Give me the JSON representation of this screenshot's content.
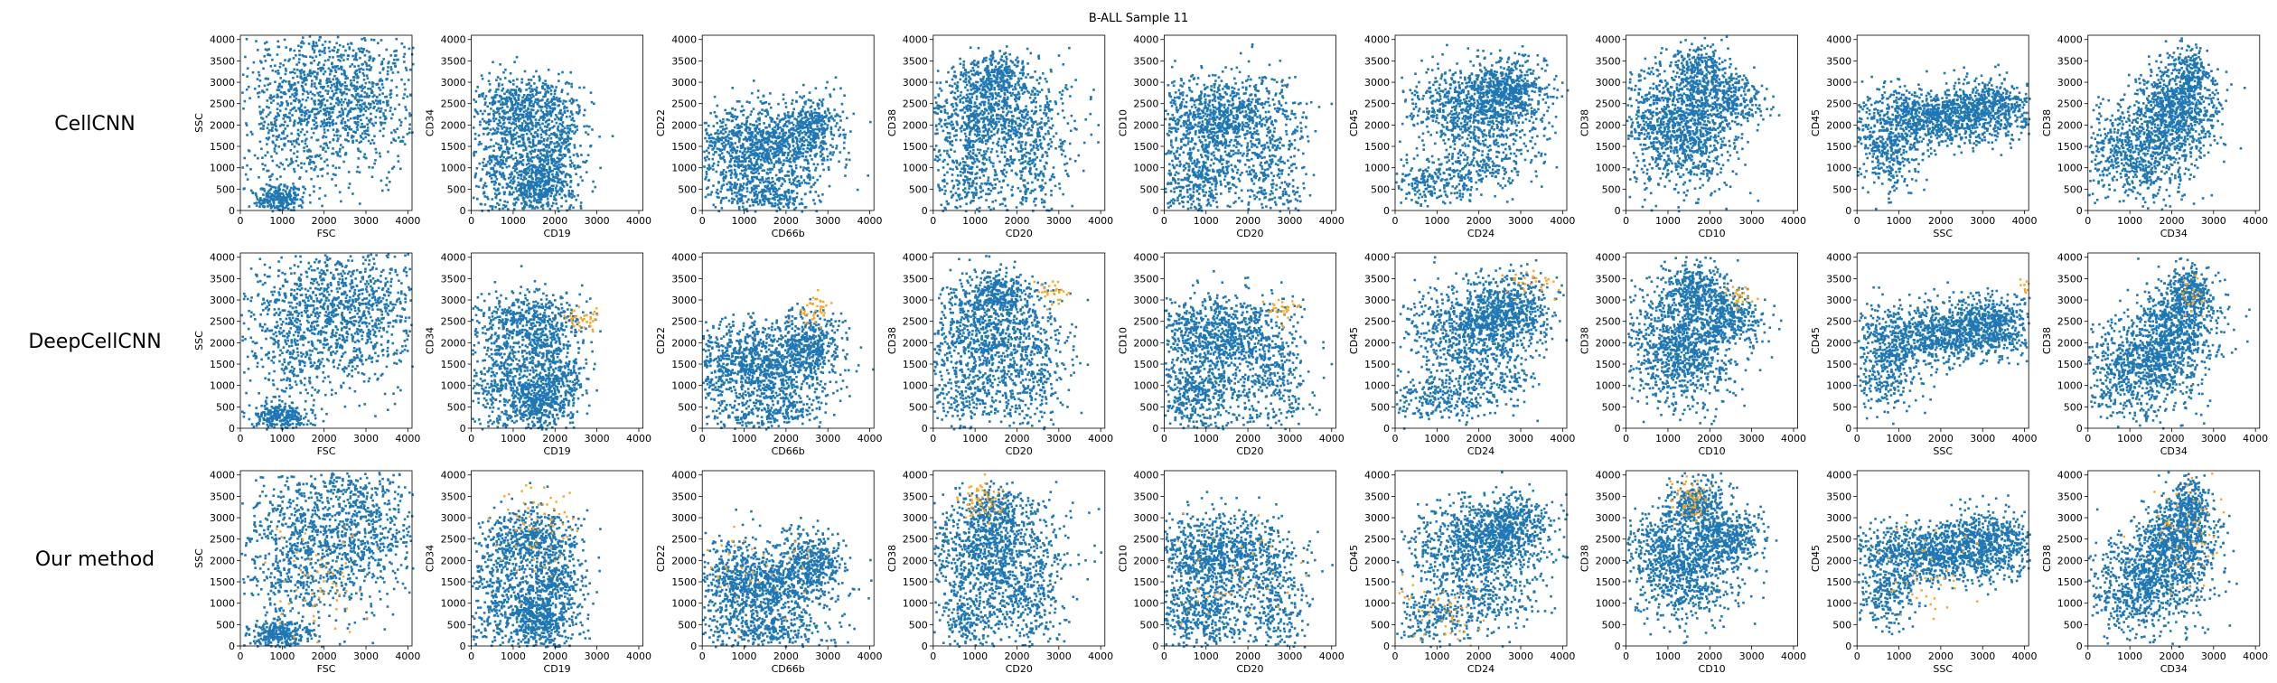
{
  "figure_title": "B-ALL Sample 11",
  "colors": {
    "main": "#1f77b4",
    "highlight": "#f5a623"
  },
  "chart_data": {
    "type": "scatter",
    "title": "B-ALL Sample 11",
    "rows": [
      "CellCNN",
      "DeepCellCNN",
      "Our method"
    ],
    "panels": [
      {
        "xlabel": "FSC",
        "ylabel": "SSC",
        "xlim": [
          0,
          4100
        ],
        "ylim": [
          0,
          4100
        ]
      },
      {
        "xlabel": "CD19",
        "ylabel": "CD34",
        "xlim": [
          0,
          4100
        ],
        "ylim": [
          0,
          4100
        ]
      },
      {
        "xlabel": "CD66b",
        "ylabel": "CD22",
        "xlim": [
          0,
          4100
        ],
        "ylim": [
          0,
          4100
        ]
      },
      {
        "xlabel": "CD20",
        "ylabel": "CD38",
        "xlim": [
          0,
          4100
        ],
        "ylim": [
          0,
          4100
        ]
      },
      {
        "xlabel": "CD20",
        "ylabel": "CD10",
        "xlim": [
          0,
          4100
        ],
        "ylim": [
          0,
          4100
        ]
      },
      {
        "xlabel": "CD24",
        "ylabel": "CD45",
        "xlim": [
          0,
          4100
        ],
        "ylim": [
          0,
          4100
        ]
      },
      {
        "xlabel": "CD10",
        "ylabel": "CD38",
        "xlim": [
          0,
          4100
        ],
        "ylim": [
          0,
          4100
        ]
      },
      {
        "xlabel": "SSC",
        "ylabel": "CD45",
        "xlim": [
          0,
          4100
        ],
        "ylim": [
          0,
          4100
        ]
      },
      {
        "xlabel": "CD34",
        "ylabel": "CD38",
        "xlim": [
          0,
          4100
        ],
        "ylim": [
          0,
          4100
        ]
      }
    ],
    "xticks": [
      0,
      1000,
      2000,
      3000,
      4000
    ],
    "yticks": [
      0,
      500,
      1000,
      1500,
      2000,
      2500,
      3000,
      3500,
      4000
    ],
    "series": [
      {
        "name": "",
        "color": "#1f77b4",
        "role": "all cells (dense background cloud)"
      },
      {
        "name": "",
        "color": "#f5a623",
        "role": "selected cells (sparse overlay)"
      }
    ]
  }
}
